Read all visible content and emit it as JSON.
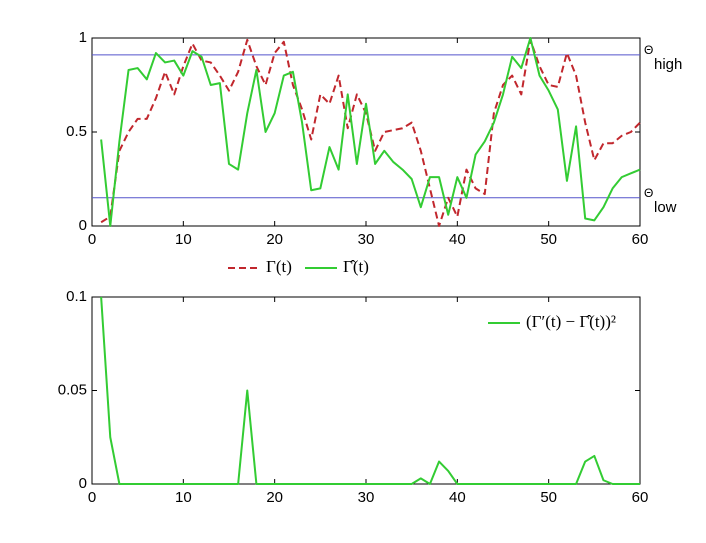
{
  "chart_data": [
    {
      "type": "line",
      "x": [
        1,
        2,
        3,
        4,
        5,
        6,
        7,
        8,
        9,
        10,
        11,
        12,
        13,
        14,
        15,
        16,
        17,
        18,
        19,
        20,
        21,
        22,
        23,
        24,
        25,
        26,
        27,
        28,
        29,
        30,
        31,
        32,
        33,
        34,
        35,
        36,
        37,
        38,
        39,
        40,
        41,
        42,
        43,
        44,
        45,
        46,
        47,
        48,
        49,
        50,
        51,
        52,
        53,
        54,
        55,
        56,
        57,
        58,
        59,
        60
      ],
      "series": [
        {
          "name": "Γ(t)",
          "color": "#c1272d",
          "style": "dashed",
          "values": [
            0.02,
            0.05,
            0.4,
            0.5,
            0.57,
            0.57,
            0.68,
            0.82,
            0.7,
            0.85,
            0.97,
            0.88,
            0.87,
            0.8,
            0.72,
            0.82,
            0.99,
            0.85,
            0.75,
            0.92,
            0.98,
            0.75,
            0.62,
            0.46,
            0.7,
            0.65,
            0.8,
            0.52,
            0.7,
            0.6,
            0.4,
            0.5,
            0.51,
            0.52,
            0.55,
            0.4,
            0.2,
            0.0,
            0.15,
            0.05,
            0.3,
            0.2,
            0.17,
            0.6,
            0.75,
            0.8,
            0.7,
            0.99,
            0.85,
            0.75,
            0.74,
            0.92,
            0.8,
            0.55,
            0.35,
            0.44,
            0.44,
            0.48,
            0.5,
            0.55
          ]
        },
        {
          "name": "Γ̂(t)",
          "color": "#33cc33",
          "style": "solid",
          "values": [
            0.46,
            0.0,
            0.45,
            0.83,
            0.84,
            0.78,
            0.92,
            0.87,
            0.88,
            0.8,
            0.93,
            0.9,
            0.75,
            0.76,
            0.33,
            0.3,
            0.6,
            0.83,
            0.5,
            0.6,
            0.8,
            0.82,
            0.55,
            0.19,
            0.2,
            0.42,
            0.3,
            0.7,
            0.33,
            0.65,
            0.33,
            0.4,
            0.34,
            0.3,
            0.25,
            0.1,
            0.26,
            0.26,
            0.06,
            0.26,
            0.15,
            0.38,
            0.45,
            0.55,
            0.7,
            0.9,
            0.84,
            1.0,
            0.8,
            0.72,
            0.62,
            0.24,
            0.53,
            0.04,
            0.03,
            0.1,
            0.2,
            0.26,
            0.28,
            0.3
          ]
        }
      ],
      "thresholds": [
        {
          "value": 0.91,
          "label": "Θ",
          "sub": "high",
          "color": "#5555cc"
        },
        {
          "value": 0.15,
          "label": "Θ",
          "sub": "low",
          "color": "#5555cc"
        }
      ],
      "xlim": [
        0,
        60
      ],
      "xticks": [
        0,
        10,
        20,
        30,
        40,
        50,
        60
      ],
      "ylim": [
        0,
        1
      ],
      "yticks": [
        0,
        0.5,
        1
      ],
      "legend": "below"
    },
    {
      "type": "line",
      "x": [
        1,
        2,
        3,
        4,
        5,
        6,
        7,
        8,
        9,
        10,
        11,
        12,
        13,
        14,
        15,
        16,
        17,
        18,
        19,
        20,
        21,
        22,
        23,
        24,
        25,
        26,
        27,
        28,
        29,
        30,
        31,
        32,
        33,
        34,
        35,
        36,
        37,
        38,
        39,
        40,
        41,
        42,
        43,
        44,
        45,
        46,
        47,
        48,
        49,
        50,
        51,
        52,
        53,
        54,
        55,
        56,
        57,
        58,
        59,
        60
      ],
      "series": [
        {
          "name": "(Γ′(t) − Γ̂(t))²",
          "color": "#33cc33",
          "style": "solid",
          "values": [
            0.1,
            0.025,
            0,
            0,
            0,
            0,
            0,
            0,
            0,
            0,
            0,
            0,
            0,
            0,
            0,
            0,
            0.05,
            0,
            0,
            0,
            0,
            0,
            0,
            0,
            0,
            0,
            0,
            0,
            0,
            0,
            0,
            0,
            0,
            0,
            0,
            0.003,
            0,
            0.012,
            0.007,
            0,
            0,
            0,
            0,
            0,
            0,
            0,
            0,
            0,
            0,
            0,
            0,
            0,
            0,
            0.012,
            0.015,
            0.002,
            0,
            0,
            0,
            0
          ]
        }
      ],
      "xlim": [
        0,
        60
      ],
      "xticks": [
        0,
        10,
        20,
        30,
        40,
        50,
        60
      ],
      "ylim": [
        0,
        0.1
      ],
      "yticks": [
        0,
        0.05,
        0.1
      ],
      "legend": "upper right"
    }
  ]
}
